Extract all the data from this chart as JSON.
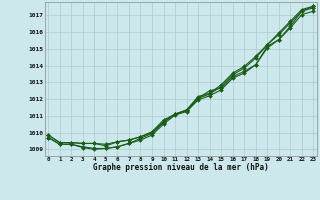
{
  "x": [
    0,
    1,
    2,
    3,
    4,
    5,
    6,
    7,
    8,
    9,
    10,
    11,
    12,
    13,
    14,
    15,
    16,
    17,
    18,
    19,
    20,
    21,
    22,
    23
  ],
  "line1": [
    1009.7,
    1009.3,
    1009.3,
    1009.15,
    1009.05,
    1009.05,
    1009.15,
    1009.35,
    1009.55,
    1009.85,
    1010.5,
    1011.05,
    1011.25,
    1011.95,
    1012.2,
    1012.55,
    1013.25,
    1013.55,
    1014.05,
    1015.05,
    1015.55,
    1016.25,
    1017.05,
    1017.25
  ],
  "line2": [
    1009.7,
    1009.3,
    1009.3,
    1009.1,
    1009.0,
    1009.05,
    1009.15,
    1009.35,
    1009.65,
    1009.95,
    1010.6,
    1011.1,
    1011.3,
    1012.05,
    1012.5,
    1012.65,
    1013.35,
    1013.65,
    1014.05,
    1015.15,
    1015.55,
    1016.35,
    1017.25,
    1017.45
  ],
  "line3": [
    1009.85,
    1009.4,
    1009.4,
    1009.35,
    1009.35,
    1009.3,
    1009.45,
    1009.55,
    1009.75,
    1010.0,
    1010.65,
    1011.1,
    1011.35,
    1012.05,
    1012.3,
    1012.75,
    1013.45,
    1013.85,
    1014.45,
    1015.25,
    1015.85,
    1016.55,
    1017.25,
    1017.55
  ],
  "line4": [
    1009.85,
    1009.4,
    1009.4,
    1009.35,
    1009.35,
    1009.2,
    1009.45,
    1009.55,
    1009.75,
    1010.05,
    1010.75,
    1011.1,
    1011.35,
    1012.15,
    1012.35,
    1012.85,
    1013.55,
    1013.95,
    1014.55,
    1015.25,
    1015.95,
    1016.65,
    1017.35,
    1017.55
  ],
  "bg_color": "#cce8ec",
  "grid_color": "#aacccc",
  "line_color": "#1a5c1a",
  "marker_size": 2.0,
  "line_width": 0.8,
  "ylabel_ticks": [
    1009,
    1010,
    1011,
    1012,
    1013,
    1014,
    1015,
    1016,
    1017
  ],
  "xlabel_label": "Graphe pression niveau de la mer (hPa)",
  "ylim": [
    1008.6,
    1017.8
  ],
  "xlim": [
    -0.3,
    23.3
  ]
}
